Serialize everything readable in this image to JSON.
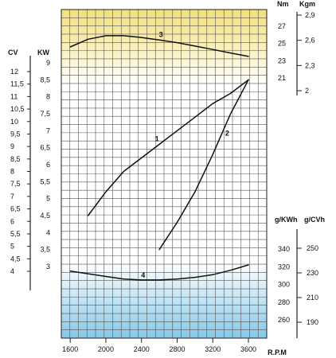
{
  "chart_data": {
    "type": "line",
    "x": {
      "label": "R.P.M",
      "range": [
        1500,
        3600
      ],
      "ticks": [
        1600,
        2000,
        2400,
        2800,
        3200,
        3600
      ]
    },
    "axes": {
      "cv": {
        "label": "CV",
        "ticks": [
          "12",
          "11,5",
          "11",
          "10,5",
          "10",
          "9,5",
          "9",
          "8,5",
          "8",
          "7,5",
          "7",
          "6,5",
          "6",
          "5,5",
          "5",
          "4,5",
          "4"
        ]
      },
      "kw": {
        "label": "KW",
        "range": [
          2.5,
          9.5
        ],
        "ticks": [
          "9",
          "8,5",
          "8",
          "7,5",
          "7",
          "6,5",
          "6",
          "5,5",
          "5",
          "4,5",
          "4",
          "3,5",
          "3"
        ]
      },
      "nm": {
        "label": "Nm",
        "ticks": [
          "27",
          "25",
          "23",
          "21"
        ]
      },
      "kgm": {
        "label": "Kgm",
        "ticks": [
          "2,9",
          "2,6",
          "2,3",
          "2"
        ]
      },
      "gkwh": {
        "label": "g/KWh",
        "ticks": [
          "340",
          "320",
          "300",
          "280",
          "260"
        ]
      },
      "gcvh": {
        "label": "g/CVh",
        "ticks": [
          "250",
          "230",
          "210",
          "190"
        ]
      }
    },
    "series": [
      {
        "id": "1",
        "unit": "KW",
        "x": [
          1800,
          2000,
          2200,
          2400,
          2600,
          2800,
          3000,
          3200,
          3400,
          3600
        ],
        "y": [
          4.5,
          5.2,
          5.8,
          6.2,
          6.6,
          7.0,
          7.4,
          7.8,
          8.1,
          8.5
        ]
      },
      {
        "id": "2",
        "unit": "KW",
        "x": [
          2600,
          2800,
          3000,
          3200,
          3300,
          3400,
          3500,
          3600
        ],
        "y": [
          3.5,
          4.3,
          5.2,
          6.3,
          6.9,
          7.5,
          8.0,
          8.5
        ]
      },
      {
        "id": "3",
        "unit": "Nm",
        "x": [
          1600,
          1800,
          2000,
          2200,
          2400,
          2600,
          2800,
          3000,
          3200,
          3400,
          3600
        ],
        "y": [
          24.6,
          25.5,
          25.9,
          25.9,
          25.7,
          25.4,
          25.1,
          24.7,
          24.3,
          23.9,
          23.5
        ]
      },
      {
        "id": "4",
        "unit": "g/KWh",
        "x": [
          1600,
          1800,
          2000,
          2200,
          2400,
          2600,
          2800,
          3000,
          3200,
          3400,
          3600
        ],
        "y": [
          315,
          312,
          309,
          306,
          305,
          305,
          306,
          308,
          311,
          316,
          322
        ]
      }
    ]
  }
}
